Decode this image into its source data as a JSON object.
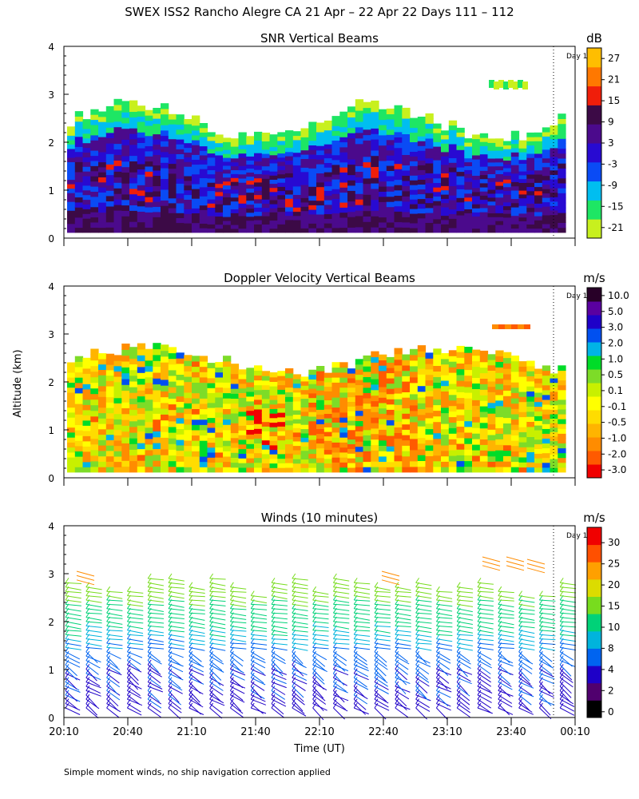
{
  "title": "SWEX ISS2 Rancho Alegre CA  21 Apr – 22 Apr 22 Days 111 – 112",
  "y_axis_label": "Altitude (km)",
  "x_axis_label": "Time (UT)",
  "x_ticks": [
    "20:10",
    "20:40",
    "21:10",
    "21:40",
    "22:10",
    "22:40",
    "23:10",
    "23:40",
    "00:10"
  ],
  "y_ticks": [
    "0",
    "1",
    "2",
    "3",
    "4"
  ],
  "day_marker_label": "Day 1",
  "footnote": "Simple moment winds, no ship navigation correction applied",
  "chart_data": [
    {
      "type": "heatmap",
      "title": "SNR Vertical Beams",
      "unit": "dB",
      "xlabel": "Time (UT)",
      "ylabel": "Altitude (km)",
      "x_range": [
        "20:10",
        "00:10"
      ],
      "ylim": [
        0,
        4
      ],
      "colorbar_ticks": [
        "27",
        "21",
        "15",
        "9",
        "3",
        "-3",
        "-9",
        "-15",
        "-21"
      ],
      "colorbar_colors": [
        "#c8f01e",
        "#1ee664",
        "#00bef0",
        "#0a4bf5",
        "#280ad2",
        "#4b0a8c",
        "#3c0a46",
        "#f01e0a",
        "#ff7800",
        "#ffbe00"
      ],
      "bands": [
        {
          "altitude_km": [
            0.1,
            0.4
          ],
          "typical_db": 9
        },
        {
          "altitude_km": [
            0.4,
            1.5
          ],
          "typical_db": 3
        },
        {
          "altitude_km": [
            1.5,
            2.3
          ],
          "typical_db": -3
        },
        {
          "altitude_km": [
            2.3,
            2.7
          ],
          "typical_db": -15
        }
      ]
    },
    {
      "type": "heatmap",
      "title": "Doppler Velocity Vertical Beams",
      "unit": "m/s",
      "xlabel": "Time (UT)",
      "ylabel": "Altitude (km)",
      "x_range": [
        "20:10",
        "00:10"
      ],
      "ylim": [
        0,
        4
      ],
      "colorbar_ticks": [
        "10.0",
        "5.0",
        "3.0",
        "2.0",
        "1.0",
        "0.5",
        "0.1",
        "-0.1",
        "-0.5",
        "-1.0",
        "-2.0",
        "-3.0"
      ],
      "colorbar_colors": [
        "#f00000",
        "#ff5a00",
        "#ff8c00",
        "#ffb400",
        "#ffdc00",
        "#ffff00",
        "#c8f000",
        "#7ddc28",
        "#00dc28",
        "#00b4e6",
        "#0050f0",
        "#1e00c8",
        "#5a00a0",
        "#280028"
      ],
      "typical_range_ms": [
        -3.0,
        2.0
      ]
    },
    {
      "type": "barbs",
      "title": "Winds (10 minutes)",
      "unit": "m/s",
      "xlabel": "Time (UT)",
      "ylabel": "Altitude (km)",
      "x_range": [
        "20:10",
        "00:10"
      ],
      "ylim": [
        0,
        4
      ],
      "colorbar_ticks": [
        "30",
        "25",
        "20",
        "15",
        "10",
        "8",
        "4",
        "2",
        "0"
      ],
      "colorbar_colors": [
        "#000000",
        "#50006e",
        "#1e00c8",
        "#0064f0",
        "#00b4dc",
        "#00d278",
        "#78dc1e",
        "#dcdc00",
        "#ffa000",
        "#ff5000",
        "#f00000"
      ],
      "speed_by_altitude": [
        {
          "altitude_km": 0.3,
          "speed_ms": 3
        },
        {
          "altitude_km": 1.0,
          "speed_ms": 4
        },
        {
          "altitude_km": 1.5,
          "speed_ms": 8
        },
        {
          "altitude_km": 2.0,
          "speed_ms": 11
        },
        {
          "altitude_km": 2.4,
          "speed_ms": 15
        },
        {
          "altitude_km": 2.8,
          "speed_ms": 18
        },
        {
          "altitude_km": 3.3,
          "speed_ms": 22
        }
      ]
    }
  ]
}
